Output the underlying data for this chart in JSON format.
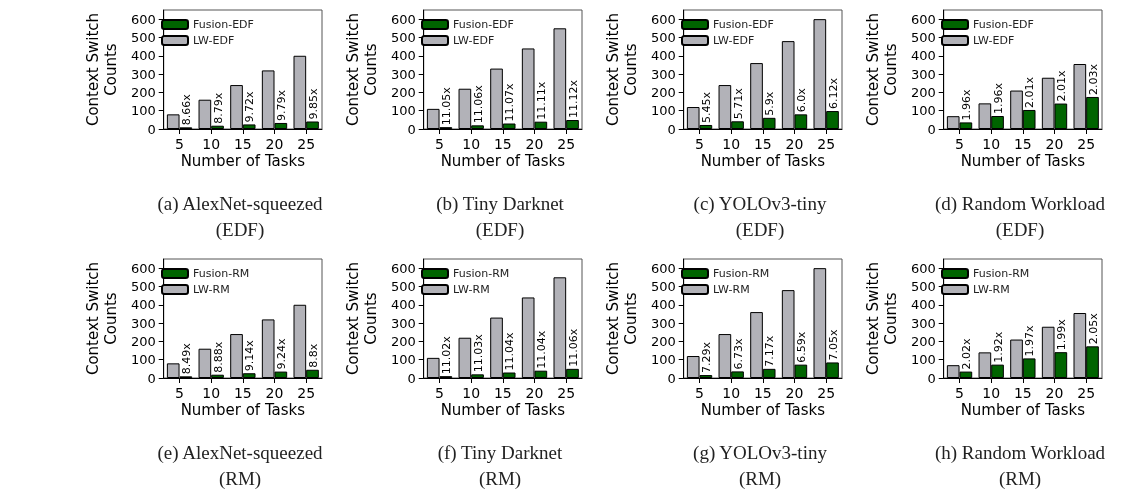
{
  "chart_data": [
    {
      "type": "bar",
      "title": "(a) AlexNet-squeezed (EDF)",
      "xlabel": "Number of Tasks",
      "ylabel": "Context Switch Counts",
      "categories": [
        "5",
        "10",
        "15",
        "20",
        "25"
      ],
      "ylim": [
        0,
        650
      ],
      "yticks": [
        0,
        100,
        200,
        300,
        400,
        500,
        600
      ],
      "legend": "top left",
      "grid": false,
      "series": [
        {
          "name": "LW-EDF",
          "color": "#b2b2b8",
          "values": [
            80,
            160,
            240,
            320,
            400
          ]
        },
        {
          "name": "Fusion-EDF",
          "color": "#006400",
          "values": [
            9,
            18,
            25,
            33,
            41
          ]
        }
      ],
      "annotations": [
        {
          "text": "8.66x",
          "x": "5",
          "y": 9
        },
        {
          "text": "8.79x",
          "x": "10",
          "y": 18
        },
        {
          "text": "9.72x",
          "x": "15",
          "y": 25
        },
        {
          "text": "9.79x",
          "x": "20",
          "y": 33
        },
        {
          "text": "9.85x",
          "x": "25",
          "y": 41
        }
      ]
    },
    {
      "type": "bar",
      "title": "(b) Tiny Darknet (EDF)",
      "xlabel": "Number of Tasks",
      "ylabel": "Context Switch Counts",
      "categories": [
        "5",
        "10",
        "15",
        "20",
        "25"
      ],
      "ylim": [
        0,
        650
      ],
      "yticks": [
        0,
        100,
        200,
        300,
        400,
        500,
        600
      ],
      "legend": "top left",
      "grid": false,
      "series": [
        {
          "name": "LW-EDF",
          "color": "#b2b2b8",
          "values": [
            110,
            220,
            330,
            440,
            550
          ]
        },
        {
          "name": "Fusion-EDF",
          "color": "#006400",
          "values": [
            10,
            20,
            30,
            40,
            49
          ]
        }
      ],
      "annotations": [
        {
          "text": "11.05x",
          "x": "5",
          "y": 10
        },
        {
          "text": "11.06x",
          "x": "10",
          "y": 20
        },
        {
          "text": "11.07x",
          "x": "15",
          "y": 30
        },
        {
          "text": "11.11x",
          "x": "20",
          "y": 40
        },
        {
          "text": "11.12x",
          "x": "25",
          "y": 49
        }
      ]
    },
    {
      "type": "bar",
      "title": "(c) YOLOv3-tiny (EDF)",
      "xlabel": "Number of Tasks",
      "ylabel": "Context Switch Counts",
      "categories": [
        "5",
        "10",
        "15",
        "20",
        "25"
      ],
      "ylim": [
        0,
        650
      ],
      "yticks": [
        0,
        100,
        200,
        300,
        400,
        500,
        600
      ],
      "legend": "top left",
      "grid": false,
      "series": [
        {
          "name": "LW-EDF",
          "color": "#b2b2b8",
          "values": [
            120,
            240,
            360,
            480,
            600
          ]
        },
        {
          "name": "Fusion-EDF",
          "color": "#006400",
          "values": [
            22,
            42,
            61,
            80,
            98
          ]
        }
      ],
      "annotations": [
        {
          "text": "5.45x",
          "x": "5",
          "y": 22
        },
        {
          "text": "5.71x",
          "x": "10",
          "y": 42
        },
        {
          "text": "5.9x",
          "x": "15",
          "y": 61
        },
        {
          "text": "6.0x",
          "x": "20",
          "y": 80
        },
        {
          "text": "6.12x",
          "x": "25",
          "y": 98
        }
      ]
    },
    {
      "type": "bar",
      "title": "(d) Random Workload (EDF)",
      "xlabel": "Number of Tasks",
      "ylabel": "Context Switch Counts",
      "categories": [
        "5",
        "10",
        "15",
        "20",
        "25"
      ],
      "ylim": [
        0,
        650
      ],
      "yticks": [
        0,
        100,
        200,
        300,
        400,
        500,
        600
      ],
      "legend": "top left",
      "grid": false,
      "series": [
        {
          "name": "LW-EDF",
          "color": "#b2b2b8",
          "values": [
            70,
            140,
            210,
            280,
            355
          ]
        },
        {
          "name": "Fusion-EDF",
          "color": "#006400",
          "values": [
            36,
            71,
            104,
            139,
            175
          ]
        }
      ],
      "annotations": [
        {
          "text": "1.96x",
          "x": "5",
          "y": 36
        },
        {
          "text": "1.96x",
          "x": "10",
          "y": 71
        },
        {
          "text": "2.01x",
          "x": "15",
          "y": 104
        },
        {
          "text": "2.01x",
          "x": "20",
          "y": 139
        },
        {
          "text": "2.03x",
          "x": "25",
          "y": 175
        }
      ]
    },
    {
      "type": "bar",
      "title": "(e) AlexNet-squeezed (RM)",
      "xlabel": "Number of Tasks",
      "ylabel": "Context Switch Counts",
      "categories": [
        "5",
        "10",
        "15",
        "20",
        "25"
      ],
      "ylim": [
        0,
        650
      ],
      "yticks": [
        0,
        100,
        200,
        300,
        400,
        500,
        600
      ],
      "legend": "top left",
      "grid": false,
      "series": [
        {
          "name": "LW-RM",
          "color": "#b2b2b8",
          "values": [
            80,
            160,
            240,
            320,
            400
          ]
        },
        {
          "name": "Fusion-RM",
          "color": "#006400",
          "values": [
            9,
            18,
            26,
            35,
            45
          ]
        }
      ],
      "annotations": [
        {
          "text": "8.49x",
          "x": "5",
          "y": 9
        },
        {
          "text": "8.88x",
          "x": "10",
          "y": 18
        },
        {
          "text": "9.14x",
          "x": "15",
          "y": 26
        },
        {
          "text": "9.24x",
          "x": "20",
          "y": 35
        },
        {
          "text": "8.8x",
          "x": "25",
          "y": 45
        }
      ]
    },
    {
      "type": "bar",
      "title": "(f) Tiny Darknet (RM)",
      "xlabel": "Number of Tasks",
      "ylabel": "Context Switch Counts",
      "categories": [
        "5",
        "10",
        "15",
        "20",
        "25"
      ],
      "ylim": [
        0,
        650
      ],
      "yticks": [
        0,
        100,
        200,
        300,
        400,
        500,
        600
      ],
      "legend": "top left",
      "grid": false,
      "series": [
        {
          "name": "LW-RM",
          "color": "#b2b2b8",
          "values": [
            110,
            220,
            330,
            440,
            550
          ]
        },
        {
          "name": "Fusion-RM",
          "color": "#006400",
          "values": [
            10,
            20,
            30,
            40,
            50
          ]
        }
      ],
      "annotations": [
        {
          "text": "11.02x",
          "x": "5",
          "y": 10
        },
        {
          "text": "11.03x",
          "x": "10",
          "y": 20
        },
        {
          "text": "11.04x",
          "x": "15",
          "y": 30
        },
        {
          "text": "11.04x",
          "x": "20",
          "y": 40
        },
        {
          "text": "11.06x",
          "x": "25",
          "y": 50
        }
      ]
    },
    {
      "type": "bar",
      "title": "(g) YOLOv3-tiny (RM)",
      "xlabel": "Number of Tasks",
      "ylabel": "Context Switch Counts",
      "categories": [
        "5",
        "10",
        "15",
        "20",
        "25"
      ],
      "ylim": [
        0,
        650
      ],
      "yticks": [
        0,
        100,
        200,
        300,
        400,
        500,
        600
      ],
      "legend": "top left",
      "grid": false,
      "series": [
        {
          "name": "LW-RM",
          "color": "#b2b2b8",
          "values": [
            120,
            240,
            360,
            480,
            600
          ]
        },
        {
          "name": "Fusion-RM",
          "color": "#006400",
          "values": [
            16,
            36,
            50,
            73,
            85
          ]
        }
      ],
      "annotations": [
        {
          "text": "7.29x",
          "x": "5",
          "y": 16
        },
        {
          "text": "6.73x",
          "x": "10",
          "y": 36
        },
        {
          "text": "7.17x",
          "x": "15",
          "y": 50
        },
        {
          "text": "6.59x",
          "x": "20",
          "y": 73
        },
        {
          "text": "7.05x",
          "x": "25",
          "y": 85
        }
      ]
    },
    {
      "type": "bar",
      "title": "(h) Random Workload (RM)",
      "xlabel": "Number of Tasks",
      "ylabel": "Context Switch Counts",
      "categories": [
        "5",
        "10",
        "15",
        "20",
        "25"
      ],
      "ylim": [
        0,
        650
      ],
      "yticks": [
        0,
        100,
        200,
        300,
        400,
        500,
        600
      ],
      "legend": "top left",
      "grid": false,
      "series": [
        {
          "name": "LW-RM",
          "color": "#b2b2b8",
          "values": [
            70,
            140,
            210,
            280,
            355
          ]
        },
        {
          "name": "Fusion-RM",
          "color": "#006400",
          "values": [
            35,
            73,
            107,
            141,
            173
          ]
        }
      ],
      "annotations": [
        {
          "text": "2.02x",
          "x": "5",
          "y": 35
        },
        {
          "text": "1.92x",
          "x": "10",
          "y": 73
        },
        {
          "text": "1.97x",
          "x": "15",
          "y": 107
        },
        {
          "text": "1.99x",
          "x": "20",
          "y": 141
        },
        {
          "text": "2.05x",
          "x": "25",
          "y": 173
        }
      ]
    }
  ]
}
